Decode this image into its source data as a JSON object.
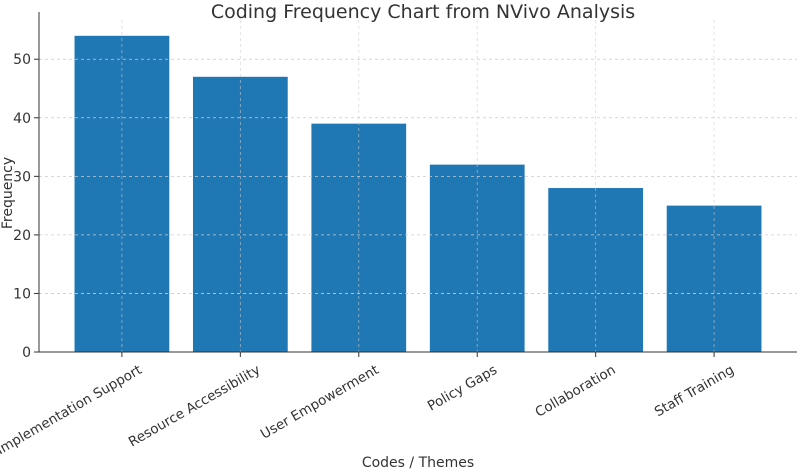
{
  "chart_data": {
    "type": "bar",
    "title": "Coding Frequency Chart from NVivo Analysis",
    "xlabel": "Codes / Themes",
    "ylabel": "Frequency",
    "categories": [
      "Implementation Support",
      "Resource Accessibility",
      "User Empowerment",
      "Policy Gaps",
      "Collaboration",
      "Staff Training"
    ],
    "values": [
      54,
      47,
      39,
      32,
      28,
      25
    ],
    "ylim": [
      0,
      56.7
    ],
    "yticks": [
      0,
      10,
      20,
      30,
      40,
      50
    ],
    "grid": true,
    "bar_color": "#1f77b4",
    "grid_color": "#cccccc",
    "axis_color": "#333333"
  }
}
